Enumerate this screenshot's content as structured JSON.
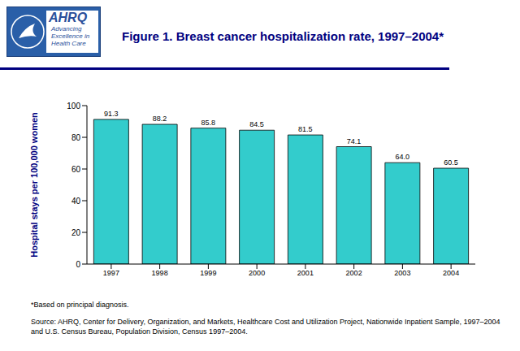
{
  "chart_data": {
    "type": "bar",
    "title": "Figure 1. Breast cancer hospitalization rate, 1997–2004*",
    "logo": [
      "AHRQ",
      "Advancing Excellence in Health Care"
    ],
    "y_label": "Hospital stays per 100,000 women",
    "categories": [
      "1997",
      "1998",
      "1999",
      "2000",
      "2001",
      "2002",
      "2003",
      "2004"
    ],
    "values": [
      91.3,
      88.2,
      85.8,
      84.5,
      81.5,
      74.1,
      64.0,
      60.5
    ],
    "value_labels": [
      "91.3",
      "88.2",
      "85.8",
      "84.5",
      "81.5",
      "74.1",
      "64.0",
      "60.5"
    ],
    "data_labels": true,
    "color": "#33CCCC",
    "ylim": [
      0,
      100
    ],
    "yticks": [
      0,
      20,
      40,
      60,
      80,
      100
    ],
    "grid": false,
    "annotations": [
      "*Based on principal diagnosis.",
      "Source: AHRQ, Center for Delivery, Organization, and Markets, Healthcare Cost and Utilization Project, Nationwide Inpatient Sample, 1997–2004 and U.S. Census Bureau, Population Division, Census 1997–2004."
    ]
  }
}
